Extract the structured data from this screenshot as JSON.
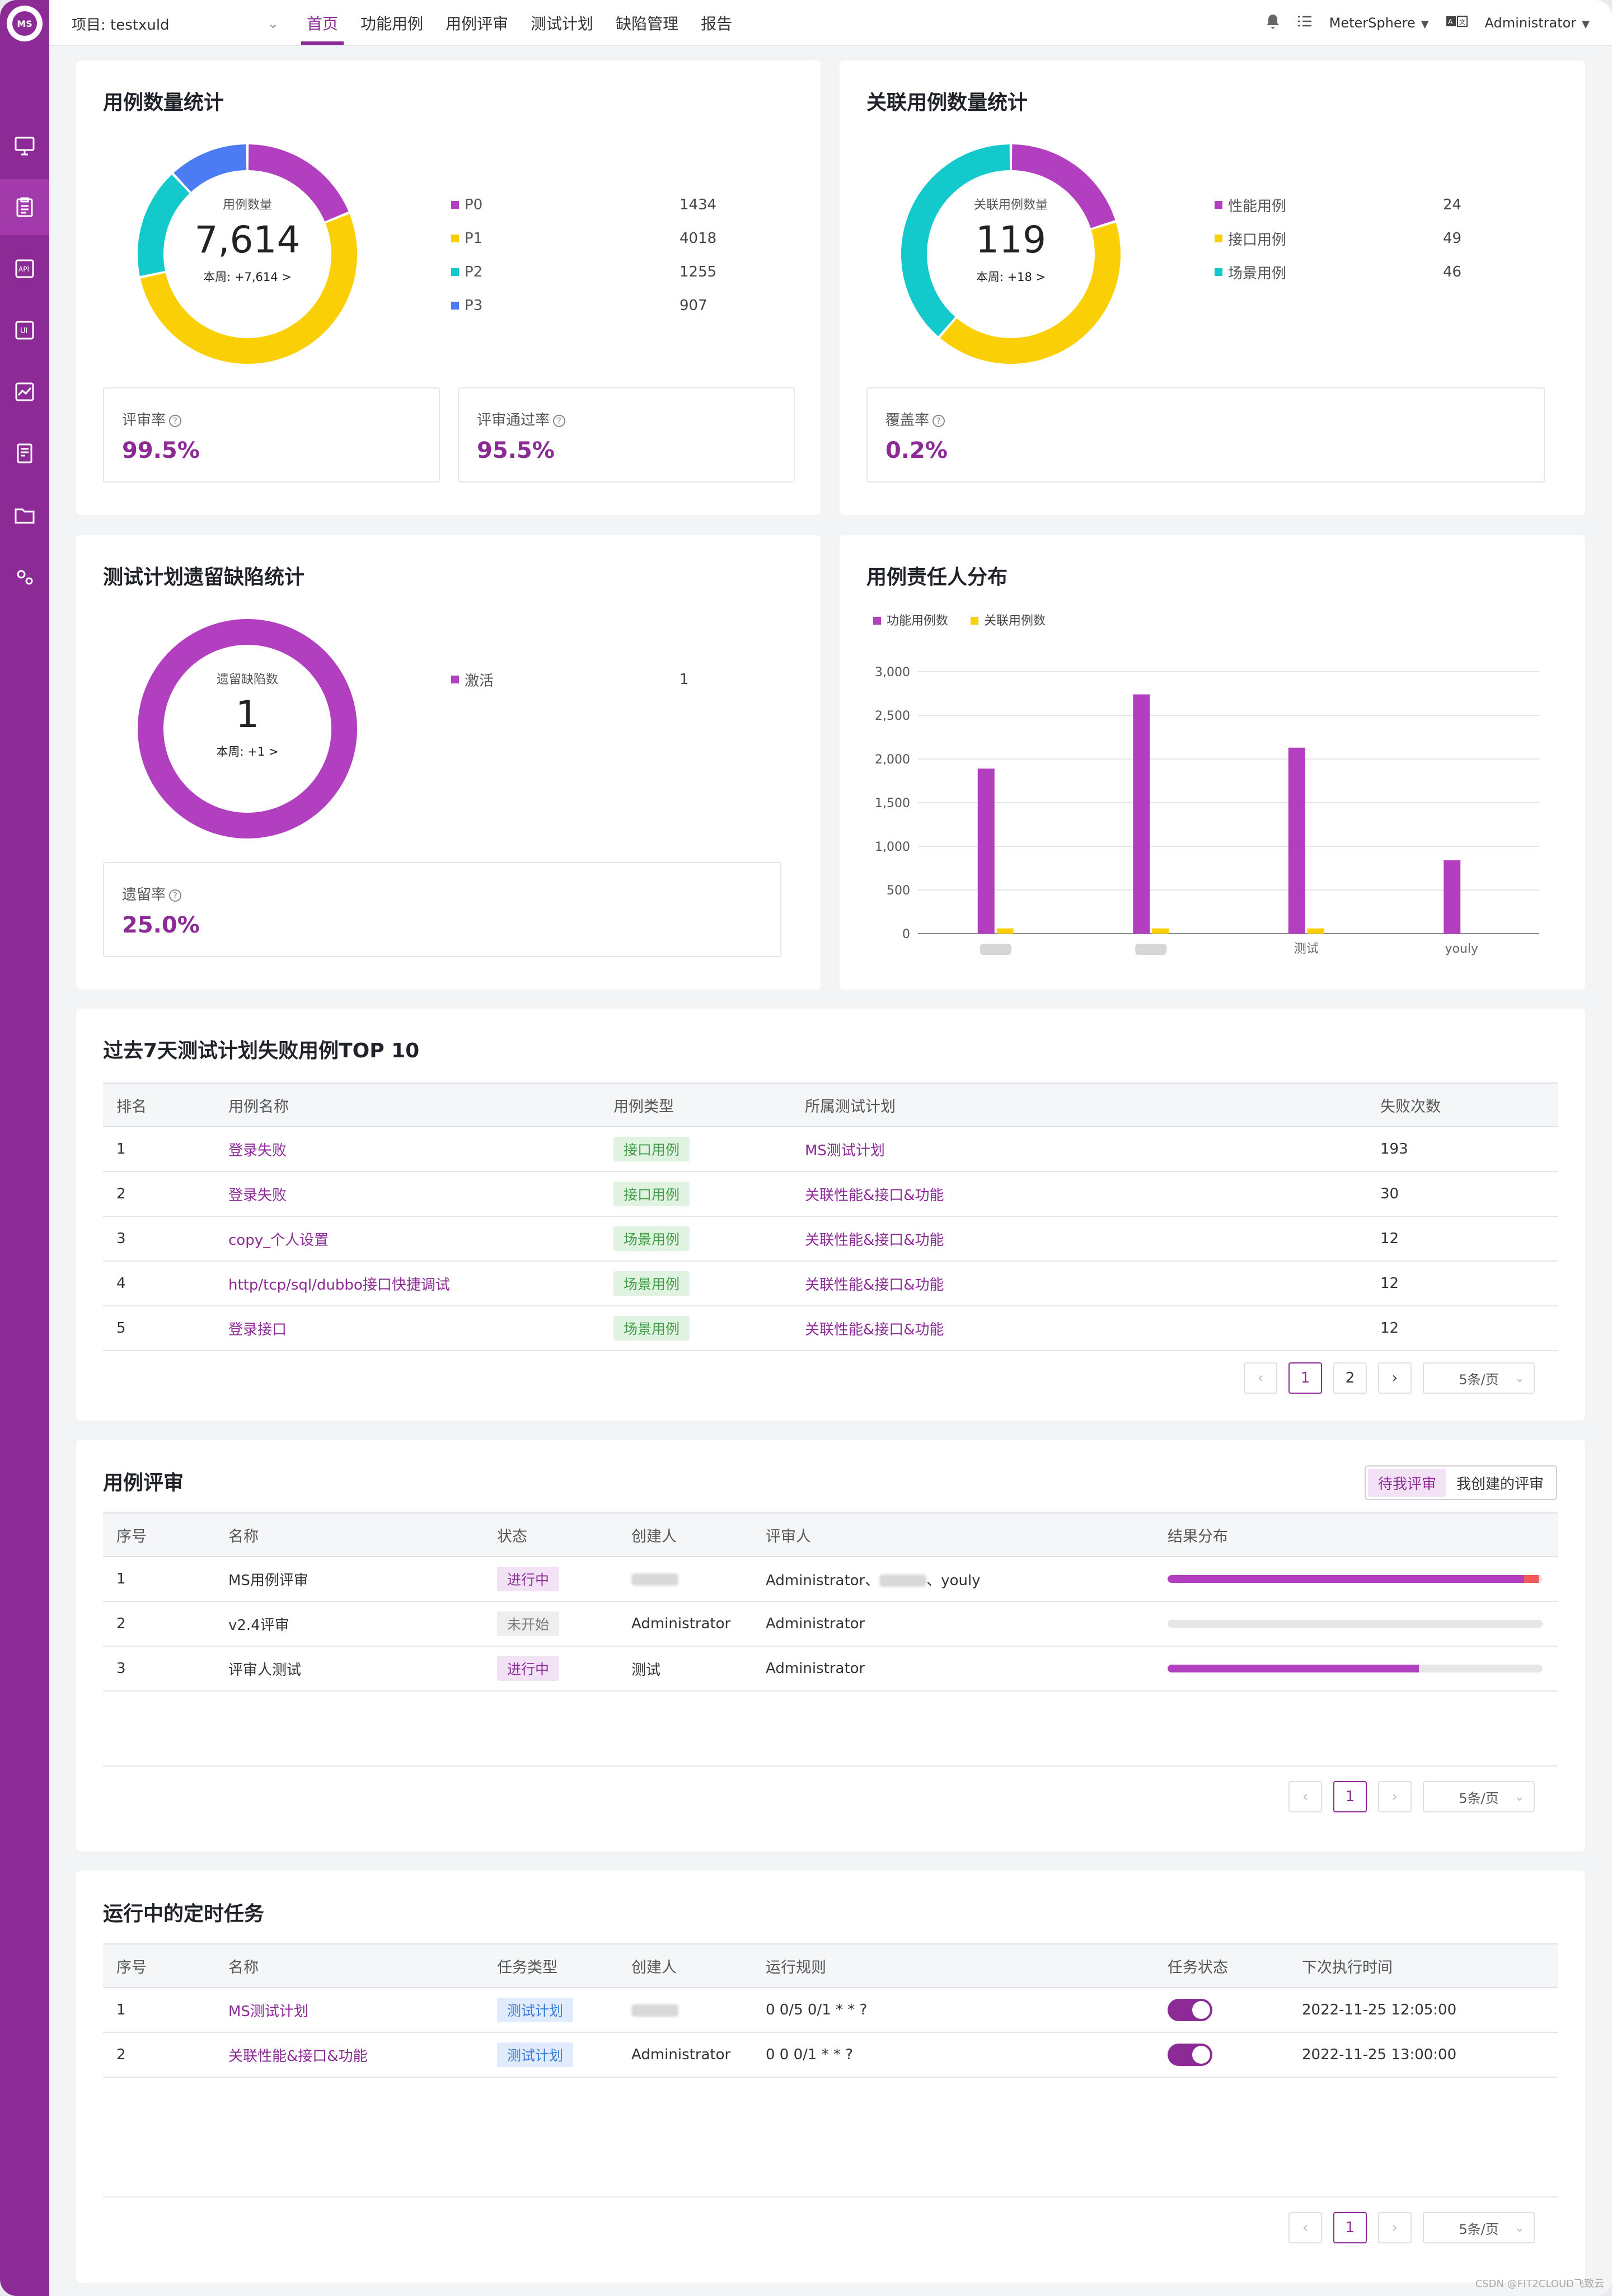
{
  "colors": {
    "brand": "#8c2a96",
    "p0": "#b23fc0",
    "p1": "#fbcf05",
    "p2": "#13c9cc",
    "p3": "#4c7cf3"
  },
  "topbar": {
    "project_label": "项目: testxuld",
    "menu": [
      "首页",
      "功能用例",
      "用例评审",
      "测试计划",
      "缺陷管理",
      "报告"
    ],
    "workspace": "MeterSphere",
    "user": "Administrator"
  },
  "case_stats": {
    "title": "用例数量统计",
    "center_label": "用例数量",
    "total": "7,614",
    "week": "本周: +7,614 >",
    "legend": [
      {
        "name": "P0",
        "value": 1434,
        "color": "#b23fc0"
      },
      {
        "name": "P1",
        "value": 4018,
        "color": "#fbcf05"
      },
      {
        "name": "P2",
        "value": 1255,
        "color": "#13c9cc"
      },
      {
        "name": "P3",
        "value": 907,
        "color": "#4c7cf3"
      }
    ],
    "review_rate_label": "评审率",
    "review_rate": "99.5%",
    "review_pass_label": "评审通过率",
    "review_pass": "95.5%"
  },
  "related_stats": {
    "title": "关联用例数量统计",
    "center_label": "关联用例数量",
    "total": "119",
    "week": "本周: +18 >",
    "legend": [
      {
        "name": "性能用例",
        "value": 24,
        "color": "#b23fc0"
      },
      {
        "name": "接口用例",
        "value": 49,
        "color": "#fbcf05"
      },
      {
        "name": "场景用例",
        "value": 46,
        "color": "#13c9cc"
      }
    ],
    "coverage_label": "覆盖率",
    "coverage": "0.2%"
  },
  "defect_stats": {
    "title": "测试计划遗留缺陷统计",
    "center_label": "遗留缺陷数",
    "total": "1",
    "week": "本周: +1 >",
    "legend": [
      {
        "name": "激活",
        "value": 1,
        "color": "#b23fc0"
      }
    ],
    "remain_label": "遗留率",
    "remain": "25.0%"
  },
  "owner_dist": {
    "title": "用例责任人分布"
  },
  "chart_data": {
    "type": "bar",
    "categories": [
      "",
      "",
      "测试",
      "youly"
    ],
    "series": [
      {
        "name": "功能用例数",
        "color": "#b23fc0",
        "values": [
          1890,
          2740,
          2130,
          840
        ]
      },
      {
        "name": "关联用例数",
        "color": "#fbcf05",
        "values": [
          60,
          60,
          60,
          0
        ]
      }
    ],
    "yticks": [
      "0",
      "500",
      "1,000",
      "1,500",
      "2,000",
      "2,500",
      "3,000"
    ],
    "ylim": [
      0,
      3000
    ],
    "legend": "top-left",
    "grid": true
  },
  "fail_top": {
    "title": "过去7天测试计划失败用例TOP 10",
    "headers": [
      "排名",
      "用例名称",
      "用例类型",
      "所属测试计划",
      "失败次数"
    ],
    "rows": [
      {
        "rank": "1",
        "name": "登录失败",
        "type": "接口用例",
        "plan": "MS测试计划",
        "count": "193"
      },
      {
        "rank": "2",
        "name": "登录失败",
        "type": "接口用例",
        "plan": "关联性能&接口&功能",
        "count": "30"
      },
      {
        "rank": "3",
        "name": "copy_个人设置",
        "type": "场景用例",
        "plan": "关联性能&接口&功能",
        "count": "12"
      },
      {
        "rank": "4",
        "name": "http/tcp/sql/dubbo接口快捷调试",
        "type": "场景用例",
        "plan": "关联性能&接口&功能",
        "count": "12"
      },
      {
        "rank": "5",
        "name": "登录接口",
        "type": "场景用例",
        "plan": "关联性能&接口&功能",
        "count": "12"
      }
    ],
    "pages": [
      "1",
      "2"
    ],
    "page_size": "5条/页"
  },
  "review": {
    "title": "用例评审",
    "tab_mine": "待我评审",
    "tab_created": "我创建的评审",
    "headers": [
      "序号",
      "名称",
      "状态",
      "创建人",
      "评审人",
      "结果分布"
    ],
    "rows": [
      {
        "no": "1",
        "name": "MS用例评审",
        "status": "进行中",
        "status_kind": "purple",
        "creator": "",
        "reviewers": "Administrator、",
        "reviewers_tail": "、youly",
        "pass": 0.95,
        "fail": 0.04
      },
      {
        "no": "2",
        "name": "v2.4评审",
        "status": "未开始",
        "status_kind": "gray",
        "creator": "Administrator",
        "reviewers": "Administrator",
        "reviewers_tail": "",
        "pass": 0,
        "fail": 0
      },
      {
        "no": "3",
        "name": "评审人测试",
        "status": "进行中",
        "status_kind": "purple",
        "creator": "测试",
        "reviewers": "Administrator",
        "reviewers_tail": "",
        "pass": 0.67,
        "fail": 0
      }
    ],
    "page": "1",
    "page_size": "5条/页"
  },
  "schedule": {
    "title": "运行中的定时任务",
    "headers": [
      "序号",
      "名称",
      "任务类型",
      "创建人",
      "运行规则",
      "任务状态",
      "下次执行时间"
    ],
    "rows": [
      {
        "no": "1",
        "name": "MS测试计划",
        "type": "测试计划",
        "creator": "",
        "rule": "0 0/5 0/1 * * ?",
        "next": "2022-11-25 12:05:00"
      },
      {
        "no": "2",
        "name": "关联性能&接口&功能",
        "type": "测试计划",
        "creator": "Administrator",
        "rule": "0 0 0/1 * * ?",
        "next": "2022-11-25 13:00:00"
      }
    ],
    "page": "1",
    "page_size": "5条/页"
  },
  "footer": "CSDN @FIT2CLOUD飞致云"
}
